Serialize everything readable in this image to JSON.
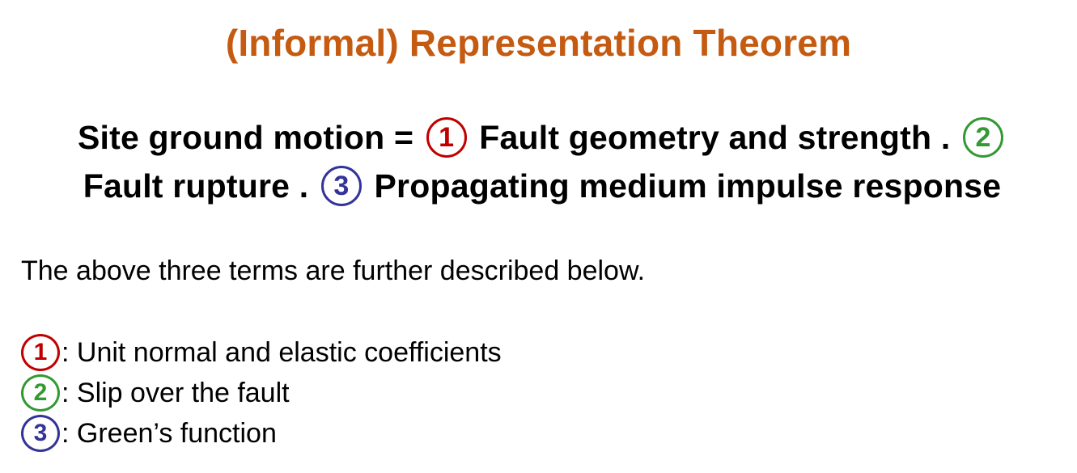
{
  "title": "(Informal) Representation Theorem",
  "equation": {
    "part1": "Site ground motion =",
    "circle1": "1",
    "part2": "Fault geometry and strength .",
    "circle2": "2",
    "part3": "Fault rupture .",
    "circle3": "3",
    "part4": "Propagating medium impulse response"
  },
  "intro": "The above three terms are further described below.",
  "terms": [
    {
      "number": "1",
      "text": ": Unit normal and elastic coefficients",
      "color": "#c00000"
    },
    {
      "number": "2",
      "text": ": Slip over the fault",
      "color": "#339933"
    },
    {
      "number": "3",
      "text": ": Green’s function",
      "color": "#333399"
    }
  ],
  "colors": {
    "title": "#c55a11",
    "circle1": "#c00000",
    "circle2": "#339933",
    "circle3": "#333399"
  }
}
